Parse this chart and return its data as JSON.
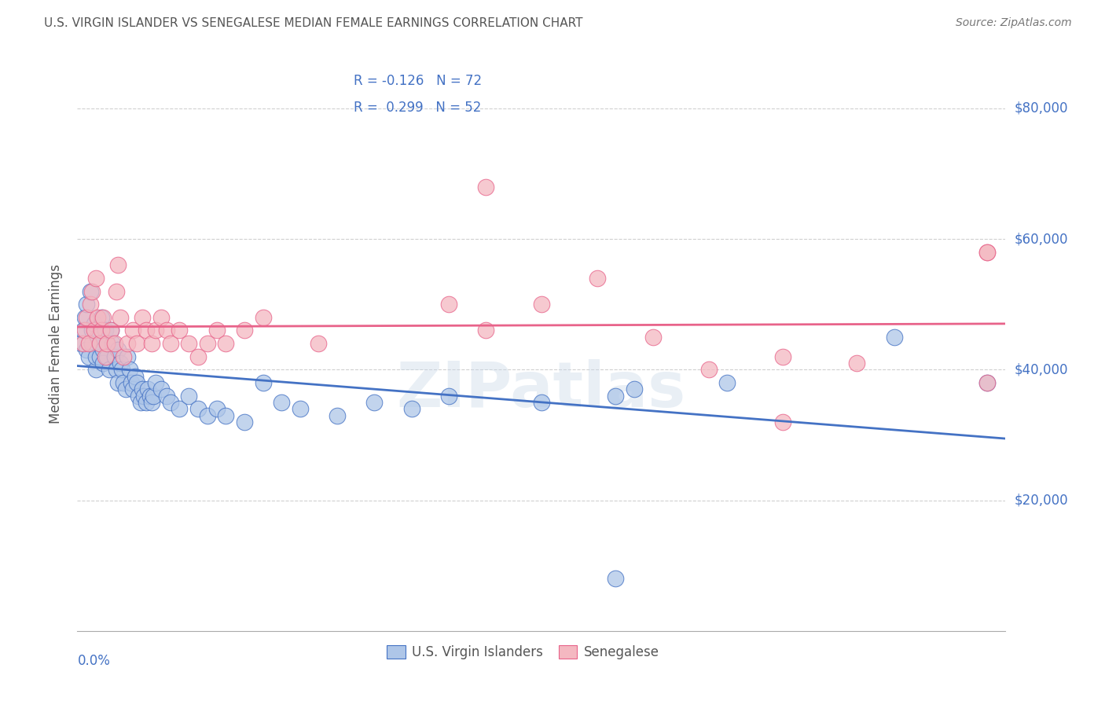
{
  "title": "U.S. VIRGIN ISLANDER VS SENEGALESE MEDIAN FEMALE EARNINGS CORRELATION CHART",
  "source": "Source: ZipAtlas.com",
  "ylabel": "Median Female Earnings",
  "y_tick_labels": [
    "$20,000",
    "$40,000",
    "$60,000",
    "$80,000"
  ],
  "y_tick_values": [
    20000,
    40000,
    60000,
    80000
  ],
  "xmin": 0.0,
  "xmax": 0.05,
  "ymin": 0,
  "ymax": 88000,
  "legend_blue_label": "U.S. Virgin Islanders",
  "legend_pink_label": "Senegalese",
  "blue_R": "-0.126",
  "blue_N": "72",
  "pink_R": "0.299",
  "pink_N": "52",
  "blue_color": "#aec6e8",
  "pink_color": "#f4b8c1",
  "blue_line_color": "#4472c4",
  "pink_line_color": "#e8638a",
  "watermark": "ZIPatlas",
  "background_color": "#ffffff",
  "title_color": "#555555",
  "right_label_color": "#4472c4",
  "grid_color": "#d0d0d0",
  "blue_scatter_x": [
    0.0002,
    0.0003,
    0.0004,
    0.0005,
    0.0005,
    0.0006,
    0.0007,
    0.0008,
    0.0008,
    0.0009,
    0.001,
    0.001,
    0.0011,
    0.0012,
    0.0012,
    0.0013,
    0.0014,
    0.0014,
    0.0015,
    0.0016,
    0.0016,
    0.0017,
    0.0018,
    0.0019,
    0.002,
    0.0021,
    0.0022,
    0.0022,
    0.0023,
    0.0024,
    0.0025,
    0.0026,
    0.0027,
    0.0028,
    0.0029,
    0.003,
    0.0031,
    0.0032,
    0.0033,
    0.0034,
    0.0035,
    0.0036,
    0.0037,
    0.0038,
    0.0039,
    0.004,
    0.0041,
    0.0042,
    0.0045,
    0.0048,
    0.005,
    0.0055,
    0.006,
    0.0065,
    0.007,
    0.0075,
    0.008,
    0.009,
    0.01,
    0.011,
    0.012,
    0.014,
    0.016,
    0.018,
    0.02,
    0.025,
    0.03,
    0.035,
    0.029,
    0.044,
    0.049,
    0.029
  ],
  "blue_scatter_y": [
    44000,
    46000,
    48000,
    50000,
    43000,
    42000,
    52000,
    46000,
    44000,
    47000,
    40000,
    42000,
    45000,
    44000,
    42000,
    48000,
    43000,
    41000,
    46000,
    44000,
    42000,
    40000,
    46000,
    44000,
    42000,
    40000,
    38000,
    43000,
    41000,
    40000,
    38000,
    37000,
    42000,
    40000,
    38000,
    37000,
    39000,
    38000,
    36000,
    35000,
    37000,
    36000,
    35000,
    37000,
    36000,
    35000,
    36000,
    38000,
    37000,
    36000,
    35000,
    34000,
    36000,
    34000,
    33000,
    34000,
    33000,
    32000,
    38000,
    35000,
    34000,
    33000,
    35000,
    34000,
    36000,
    35000,
    37000,
    38000,
    36000,
    45000,
    38000,
    8000
  ],
  "pink_scatter_x": [
    0.0003,
    0.0004,
    0.0005,
    0.0006,
    0.0007,
    0.0008,
    0.0009,
    0.001,
    0.0011,
    0.0012,
    0.0013,
    0.0014,
    0.0015,
    0.0016,
    0.0018,
    0.002,
    0.0021,
    0.0022,
    0.0023,
    0.0025,
    0.0027,
    0.003,
    0.0032,
    0.0035,
    0.0037,
    0.004,
    0.0042,
    0.0045,
    0.0048,
    0.005,
    0.0055,
    0.006,
    0.0065,
    0.007,
    0.0075,
    0.008,
    0.009,
    0.01,
    0.013,
    0.02,
    0.022,
    0.025,
    0.028,
    0.031,
    0.038,
    0.042,
    0.034,
    0.022,
    0.049,
    0.049,
    0.038,
    0.049
  ],
  "pink_scatter_y": [
    44000,
    46000,
    48000,
    44000,
    50000,
    52000,
    46000,
    54000,
    48000,
    44000,
    46000,
    48000,
    42000,
    44000,
    46000,
    44000,
    52000,
    56000,
    48000,
    42000,
    44000,
    46000,
    44000,
    48000,
    46000,
    44000,
    46000,
    48000,
    46000,
    44000,
    46000,
    44000,
    42000,
    44000,
    46000,
    44000,
    46000,
    48000,
    44000,
    50000,
    46000,
    50000,
    54000,
    45000,
    42000,
    41000,
    40000,
    68000,
    58000,
    38000,
    32000,
    58000
  ]
}
